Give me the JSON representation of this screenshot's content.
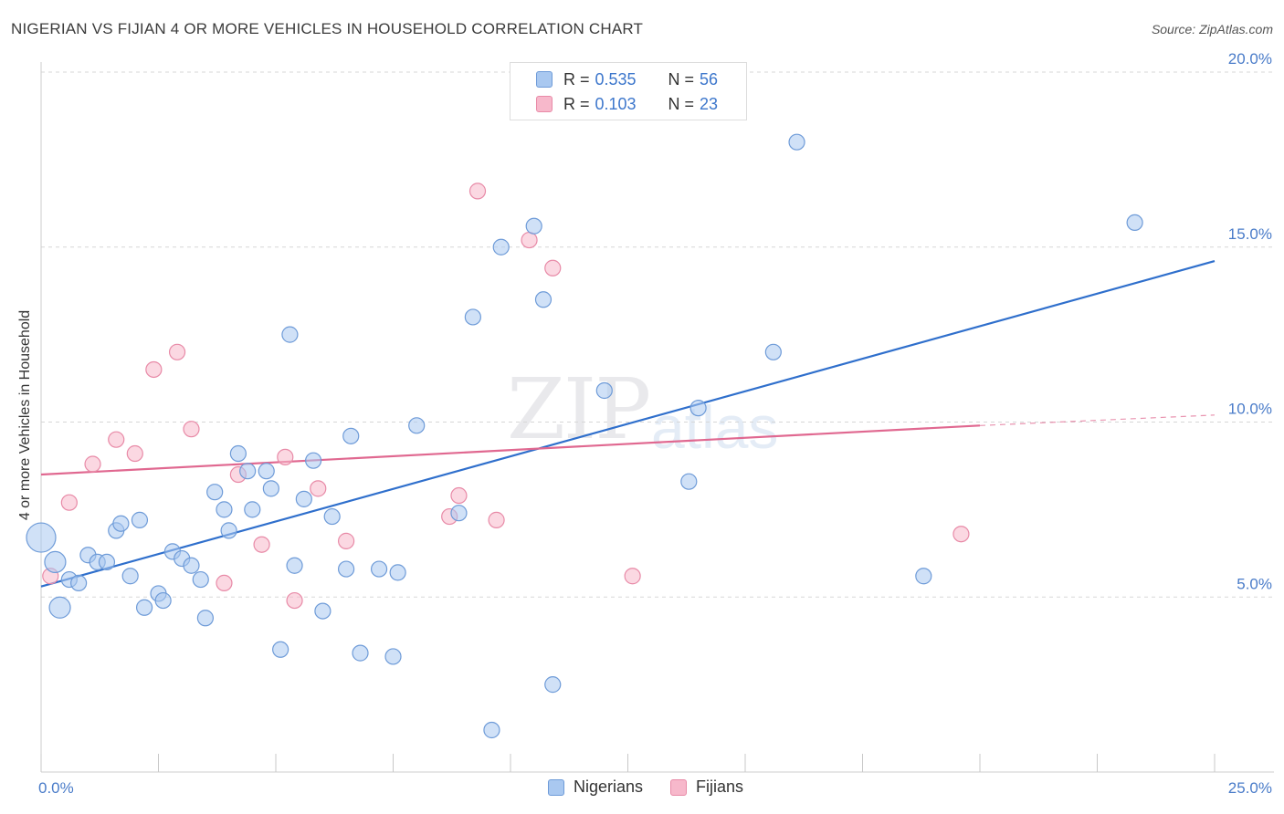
{
  "header": {
    "title": "NIGERIAN VS FIJIAN 4 OR MORE VEHICLES IN HOUSEHOLD CORRELATION CHART",
    "source": "Source: ZipAtlas.com"
  },
  "watermark": {
    "zip": "ZIP",
    "atlas": "atlas"
  },
  "legend": {
    "r_label": "R =",
    "n_label": "N =",
    "nigerians": {
      "r": "0.535",
      "n": "56"
    },
    "fijians": {
      "r": "0.103",
      "n": "23"
    }
  },
  "bottom_legend": {
    "nigerians": "Nigerians",
    "fijians": "Fijians"
  },
  "colors": {
    "nigerian_fill": "#a9c8f0",
    "nigerian_stroke": "#6e9bd8",
    "nigerian_line": "#2f6fcc",
    "fijian_fill": "#f7b8cb",
    "fijian_stroke": "#e88aa7",
    "fijian_line": "#e06890",
    "grid": "#d7d7d7",
    "tick_text": "#4a7cc9"
  },
  "chart_data": {
    "type": "scatter",
    "title": "NIGERIAN VS FIJIAN 4 OR MORE VEHICLES IN HOUSEHOLD CORRELATION CHART",
    "xlabel": "",
    "ylabel": "4 or more Vehicles in Household",
    "xlim": [
      0,
      25
    ],
    "ylim": [
      0,
      20
    ],
    "x_tick_labels": [
      "0.0%",
      "25.0%"
    ],
    "y_ticks": [
      5,
      10,
      15,
      20
    ],
    "y_tick_labels": [
      "5.0%",
      "10.0%",
      "15.0%",
      "20.0%"
    ],
    "grid": true,
    "legend_position": "top-center",
    "series": [
      {
        "name": "Nigerians",
        "points": [
          [
            0.0,
            6.7,
            3
          ],
          [
            0.3,
            6.0,
            2
          ],
          [
            0.4,
            4.7,
            2
          ],
          [
            0.6,
            5.5,
            1
          ],
          [
            0.8,
            5.4,
            1
          ],
          [
            1.0,
            6.2,
            1
          ],
          [
            1.2,
            6.0,
            1
          ],
          [
            1.4,
            6.0,
            1
          ],
          [
            1.6,
            6.9,
            1
          ],
          [
            1.7,
            7.1,
            1
          ],
          [
            1.9,
            5.6,
            1
          ],
          [
            2.1,
            7.2,
            1
          ],
          [
            2.2,
            4.7,
            1
          ],
          [
            2.5,
            5.1,
            1
          ],
          [
            2.6,
            4.9,
            1
          ],
          [
            2.8,
            6.3,
            1
          ],
          [
            3.0,
            6.1,
            1
          ],
          [
            3.2,
            5.9,
            1
          ],
          [
            3.4,
            5.5,
            1
          ],
          [
            3.5,
            4.4,
            1
          ],
          [
            3.7,
            8.0,
            1
          ],
          [
            3.9,
            7.5,
            1
          ],
          [
            4.0,
            6.9,
            1
          ],
          [
            4.2,
            9.1,
            1
          ],
          [
            4.4,
            8.6,
            1
          ],
          [
            4.5,
            7.5,
            1
          ],
          [
            4.8,
            8.6,
            1
          ],
          [
            4.9,
            8.1,
            1
          ],
          [
            5.1,
            3.5,
            1
          ],
          [
            5.3,
            12.5,
            1
          ],
          [
            5.4,
            5.9,
            1
          ],
          [
            5.6,
            7.8,
            1
          ],
          [
            5.8,
            8.9,
            1
          ],
          [
            6.0,
            4.6,
            1
          ],
          [
            6.2,
            7.3,
            1
          ],
          [
            6.5,
            5.8,
            1
          ],
          [
            6.6,
            9.6,
            1
          ],
          [
            6.8,
            3.4,
            1
          ],
          [
            7.2,
            5.8,
            1
          ],
          [
            7.5,
            3.3,
            1
          ],
          [
            7.6,
            5.7,
            1
          ],
          [
            8.0,
            9.9,
            1
          ],
          [
            8.9,
            7.4,
            1
          ],
          [
            9.2,
            13.0,
            1
          ],
          [
            9.6,
            1.2,
            1
          ],
          [
            9.8,
            15.0,
            1
          ],
          [
            10.5,
            15.6,
            1
          ],
          [
            10.7,
            13.5,
            1
          ],
          [
            10.9,
            2.5,
            1
          ],
          [
            12.0,
            10.9,
            1
          ],
          [
            13.8,
            8.3,
            1
          ],
          [
            14.0,
            10.4,
            1
          ],
          [
            15.6,
            12.0,
            1
          ],
          [
            16.1,
            18.0,
            1
          ],
          [
            18.8,
            5.6,
            1
          ],
          [
            23.3,
            15.7,
            1
          ]
        ],
        "trend": {
          "x0": 0.0,
          "y0": 5.3,
          "x1": 25.0,
          "y1": 14.6
        }
      },
      {
        "name": "Fijians",
        "points": [
          [
            0.2,
            5.6,
            1
          ],
          [
            0.6,
            7.7,
            1
          ],
          [
            1.1,
            8.8,
            1
          ],
          [
            1.6,
            9.5,
            1
          ],
          [
            2.0,
            9.1,
            1
          ],
          [
            2.4,
            11.5,
            1
          ],
          [
            2.9,
            12.0,
            1
          ],
          [
            3.2,
            9.8,
            1
          ],
          [
            3.9,
            5.4,
            1
          ],
          [
            4.2,
            8.5,
            1
          ],
          [
            4.7,
            6.5,
            1
          ],
          [
            5.2,
            9.0,
            1
          ],
          [
            5.4,
            4.9,
            1
          ],
          [
            5.9,
            8.1,
            1
          ],
          [
            6.5,
            6.6,
            1
          ],
          [
            8.7,
            7.3,
            1
          ],
          [
            8.9,
            7.9,
            1
          ],
          [
            9.3,
            16.6,
            1
          ],
          [
            9.7,
            7.2,
            1
          ],
          [
            10.4,
            15.2,
            1
          ],
          [
            10.9,
            14.4,
            1
          ],
          [
            12.6,
            5.6,
            1
          ],
          [
            19.6,
            6.8,
            1
          ]
        ],
        "trend": {
          "x0": 0.0,
          "y0": 8.5,
          "x1": 20.0,
          "y1": 9.9,
          "dash_to_x": 25.0,
          "dash_to_y": 10.2
        }
      }
    ]
  }
}
